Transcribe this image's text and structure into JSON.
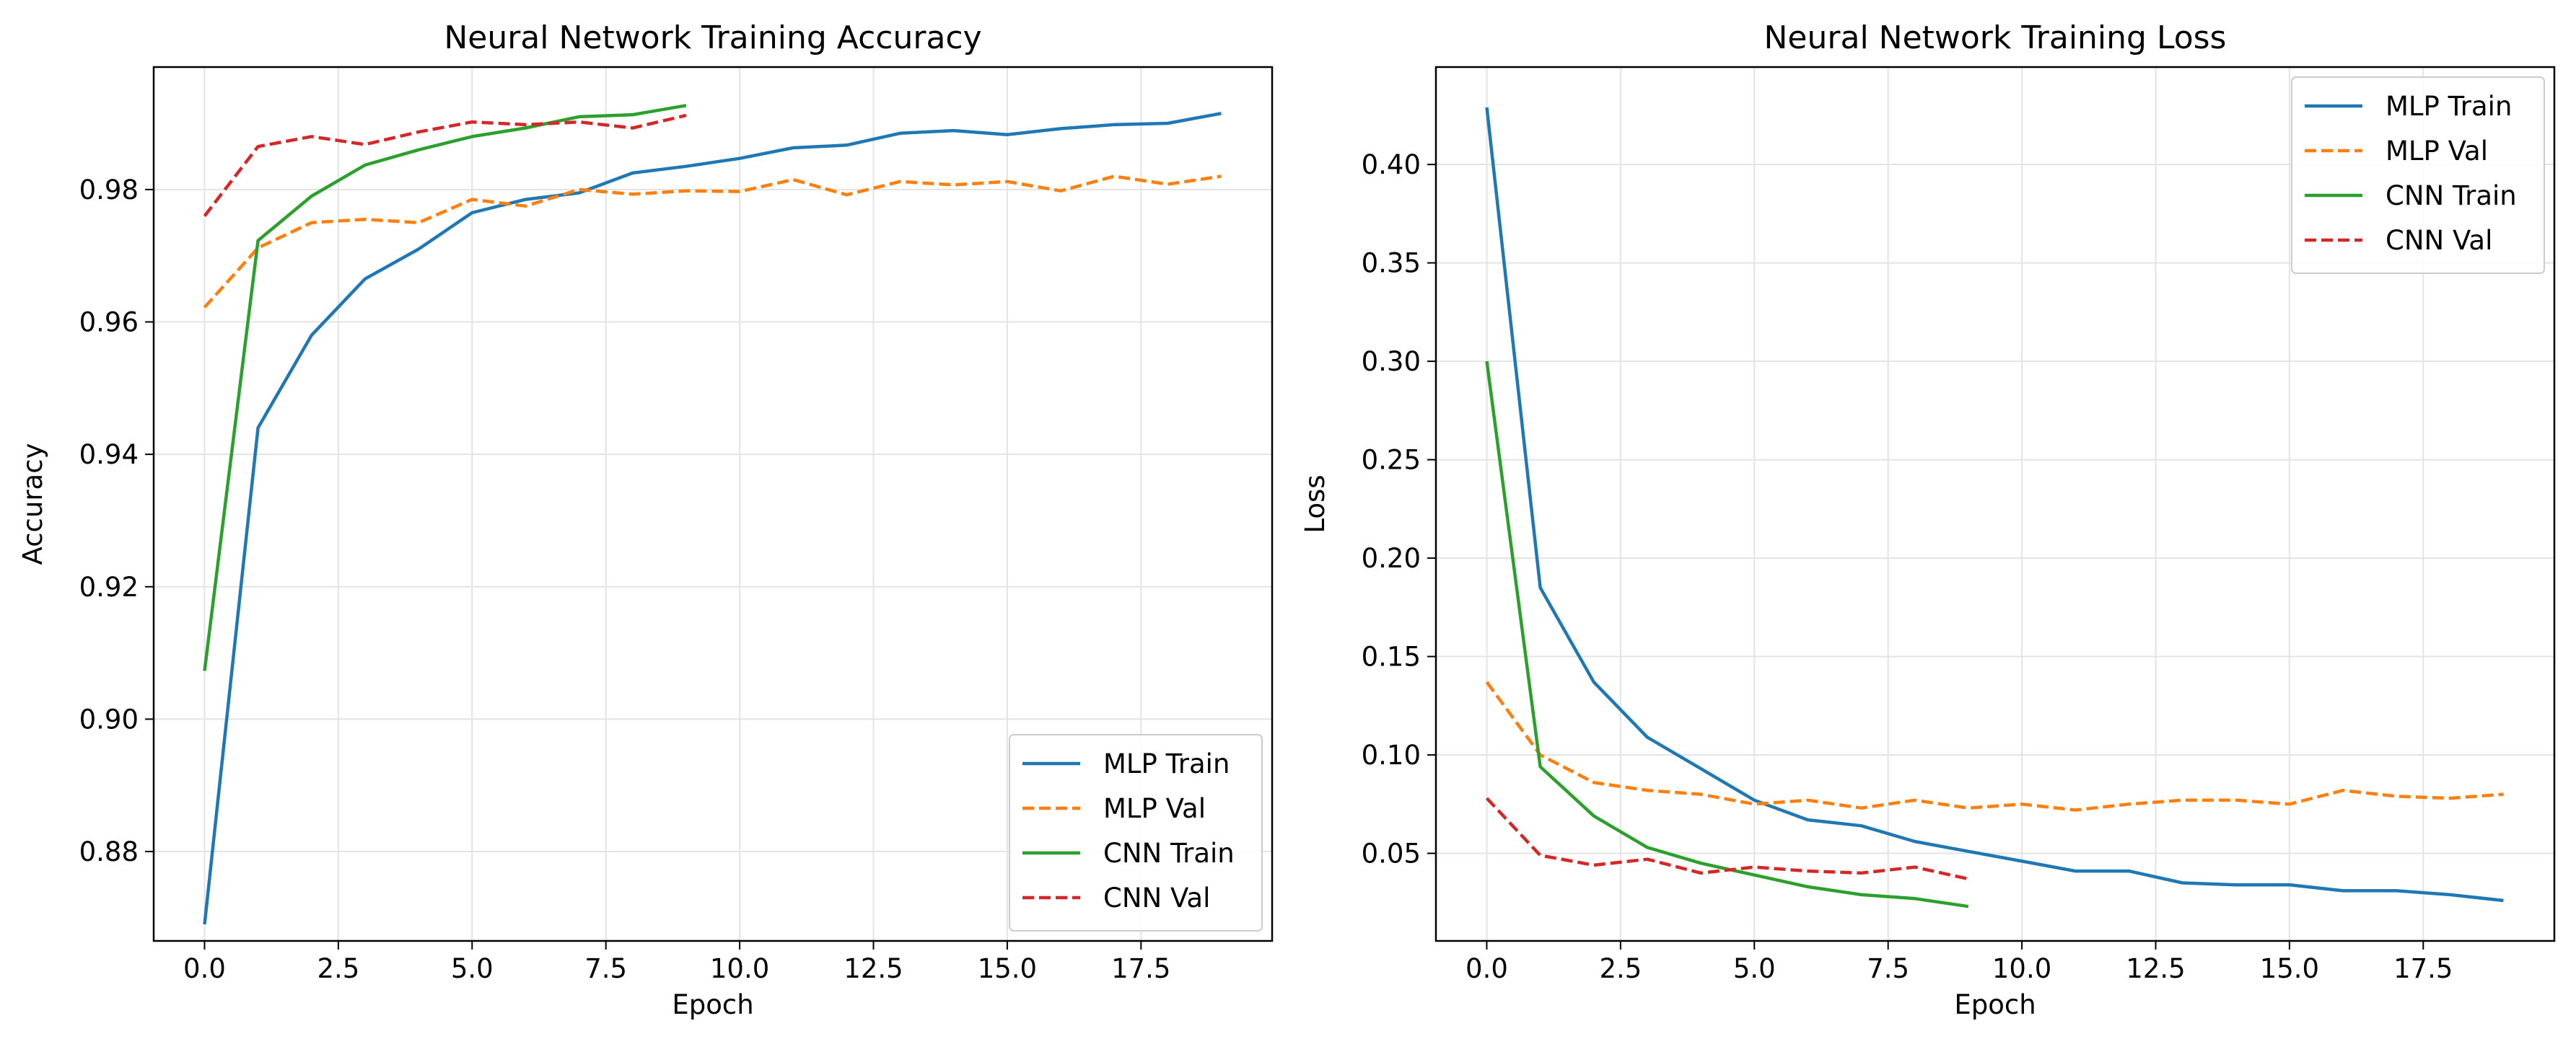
{
  "chart_data": [
    {
      "type": "line",
      "title": "Neural Network Training Accuracy",
      "xlabel": "Epoch",
      "ylabel": "Accuracy",
      "xlim": [
        -0.95,
        19.95
      ],
      "ylim": [
        0.8665,
        0.9985
      ],
      "xticks": [
        0,
        2.5,
        5,
        7.5,
        10,
        12.5,
        15,
        17.5
      ],
      "xtick_labels": [
        "0.0",
        "2.5",
        "5.0",
        "7.5",
        "10.0",
        "12.5",
        "15.0",
        "17.5"
      ],
      "yticks": [
        0.88,
        0.9,
        0.92,
        0.94,
        0.96,
        0.98
      ],
      "ytick_labels": [
        "0.88",
        "0.90",
        "0.92",
        "0.94",
        "0.96",
        "0.98"
      ],
      "grid": true,
      "legend_position": "lower-right",
      "series": [
        {
          "name": "MLP Train",
          "color": "#1f77b4",
          "dash": "solid",
          "x": [
            0,
            1,
            2,
            3,
            4,
            5,
            6,
            7,
            8,
            9,
            10,
            11,
            12,
            13,
            14,
            15,
            16,
            17,
            18,
            19
          ],
          "y": [
            0.869,
            0.944,
            0.958,
            0.9665,
            0.971,
            0.9765,
            0.9785,
            0.9795,
            0.9825,
            0.9835,
            0.9847,
            0.9863,
            0.9867,
            0.9885,
            0.9889,
            0.9883,
            0.9892,
            0.9898,
            0.99,
            0.9915
          ]
        },
        {
          "name": "MLP Val",
          "color": "#ff7f0e",
          "dash": "dashed",
          "x": [
            0,
            1,
            2,
            3,
            4,
            5,
            6,
            7,
            8,
            9,
            10,
            11,
            12,
            13,
            14,
            15,
            16,
            17,
            18,
            19
          ],
          "y": [
            0.9622,
            0.9712,
            0.975,
            0.9755,
            0.975,
            0.9785,
            0.9775,
            0.98,
            0.9793,
            0.9798,
            0.9797,
            0.9815,
            0.9792,
            0.9812,
            0.9807,
            0.9812,
            0.9798,
            0.982,
            0.9808,
            0.982
          ]
        },
        {
          "name": "CNN Train",
          "color": "#2ca02c",
          "dash": "solid",
          "x": [
            0,
            1,
            2,
            3,
            4,
            5,
            6,
            7,
            8,
            9
          ],
          "y": [
            0.9073,
            0.9723,
            0.979,
            0.9837,
            0.986,
            0.988,
            0.9893,
            0.991,
            0.9913,
            0.9927
          ]
        },
        {
          "name": "CNN Val",
          "color": "#d62728",
          "dash": "dashed",
          "x": [
            0,
            1,
            2,
            3,
            4,
            5,
            6,
            7,
            8,
            9
          ],
          "y": [
            0.976,
            0.9865,
            0.988,
            0.9868,
            0.9887,
            0.9902,
            0.9898,
            0.9902,
            0.9893,
            0.9912
          ]
        }
      ]
    },
    {
      "type": "line",
      "title": "Neural Network Training Loss",
      "xlabel": "Epoch",
      "ylabel": "Loss",
      "xlim": [
        -0.95,
        19.95
      ],
      "ylim": [
        0.0055,
        0.4495
      ],
      "xticks": [
        0,
        2.5,
        5,
        7.5,
        10,
        12.5,
        15,
        17.5
      ],
      "xtick_labels": [
        "0.0",
        "2.5",
        "5.0",
        "7.5",
        "10.0",
        "12.5",
        "15.0",
        "17.5"
      ],
      "yticks": [
        0.05,
        0.1,
        0.15,
        0.2,
        0.25,
        0.3,
        0.35,
        0.4
      ],
      "ytick_labels": [
        "0.05",
        "0.10",
        "0.15",
        "0.20",
        "0.25",
        "0.30",
        "0.35",
        "0.40"
      ],
      "grid": true,
      "legend_position": "upper-right",
      "series": [
        {
          "name": "MLP Train",
          "color": "#1f77b4",
          "dash": "solid",
          "x": [
            0,
            1,
            2,
            3,
            4,
            5,
            6,
            7,
            8,
            9,
            10,
            11,
            12,
            13,
            14,
            15,
            16,
            17,
            18,
            19
          ],
          "y": [
            0.429,
            0.185,
            0.137,
            0.109,
            0.093,
            0.077,
            0.067,
            0.064,
            0.056,
            0.051,
            0.046,
            0.041,
            0.041,
            0.035,
            0.034,
            0.034,
            0.031,
            0.031,
            0.029,
            0.026
          ]
        },
        {
          "name": "MLP Val",
          "color": "#ff7f0e",
          "dash": "dashed",
          "x": [
            0,
            1,
            2,
            3,
            4,
            5,
            6,
            7,
            8,
            9,
            10,
            11,
            12,
            13,
            14,
            15,
            16,
            17,
            18,
            19
          ],
          "y": [
            0.137,
            0.1,
            0.086,
            0.082,
            0.08,
            0.075,
            0.077,
            0.073,
            0.077,
            0.073,
            0.075,
            0.072,
            0.075,
            0.077,
            0.077,
            0.075,
            0.082,
            0.079,
            0.078,
            0.08
          ]
        },
        {
          "name": "CNN Train",
          "color": "#2ca02c",
          "dash": "solid",
          "x": [
            0,
            1,
            2,
            3,
            4,
            5,
            6,
            7,
            8,
            9
          ],
          "y": [
            0.3,
            0.094,
            0.069,
            0.053,
            0.045,
            0.039,
            0.033,
            0.029,
            0.027,
            0.023
          ]
        },
        {
          "name": "CNN Val",
          "color": "#d62728",
          "dash": "dashed",
          "x": [
            0,
            1,
            2,
            3,
            4,
            5,
            6,
            7,
            8,
            9
          ],
          "y": [
            0.078,
            0.049,
            0.044,
            0.047,
            0.04,
            0.043,
            0.041,
            0.04,
            0.043,
            0.037
          ]
        }
      ]
    }
  ]
}
